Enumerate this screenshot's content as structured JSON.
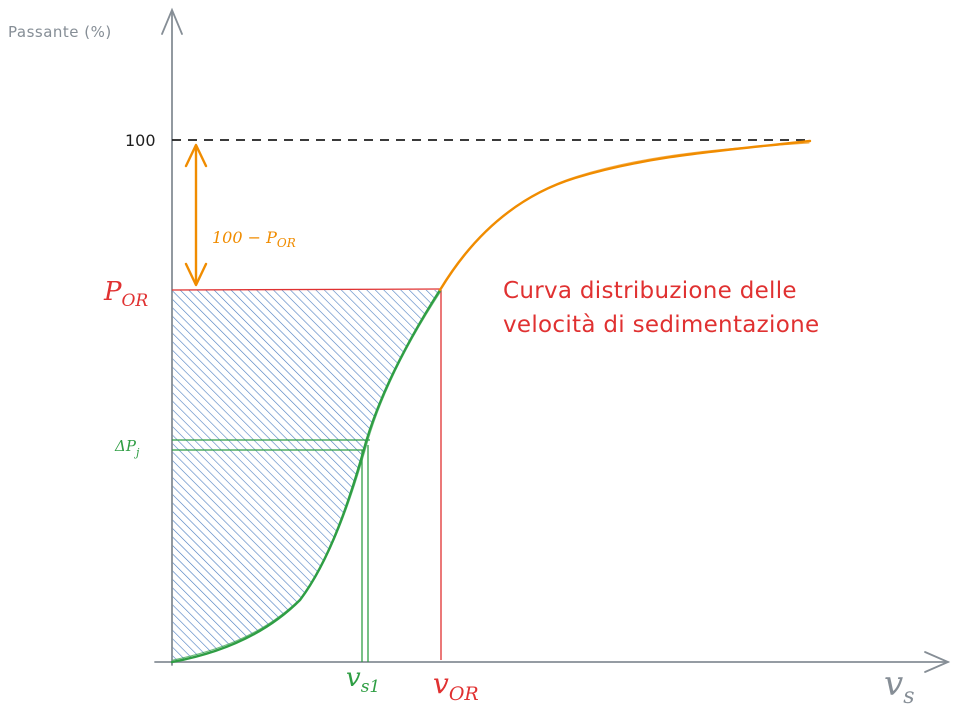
{
  "axes": {
    "y_label": "Passante (%)",
    "x_label_main": "v",
    "x_label_sub": "s"
  },
  "labels": {
    "tick_100": "100",
    "p_or_main": "P",
    "p_or_sub": "OR",
    "gap_text": "100 − P",
    "gap_sub": "OR",
    "delta_p_main": "ΔP",
    "delta_p_sub": "j",
    "vs1_main": "v",
    "vs1_sub": "s1",
    "vor_main": "v",
    "vor_sub": "OR",
    "curve_title_line1": "Curva distribuzione delle",
    "curve_title_line2": "velocità di sedimentazione"
  },
  "colors": {
    "axis": "#868e96",
    "red": "#e03131",
    "orange": "#f08c00",
    "green": "#2f9e44",
    "hatch": "#4a7cbf",
    "dashed": "#1e1e1e"
  }
}
